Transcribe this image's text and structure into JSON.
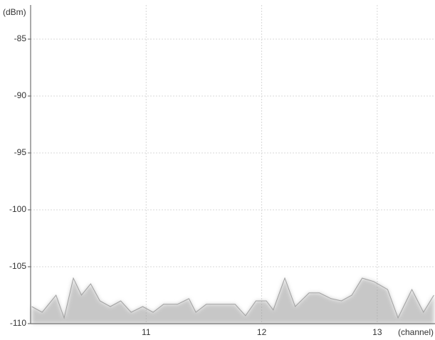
{
  "chart_data": {
    "type": "line",
    "y_label": "(dBm)",
    "x_label": "(channel)",
    "xlim": [
      10,
      13.5
    ],
    "xticks": [
      11,
      12,
      13
    ],
    "ylim": [
      -110,
      -82
    ],
    "yticks": [
      -110,
      -105,
      -100,
      -95,
      -90,
      -85
    ],
    "grid": true,
    "series": [
      {
        "color": "#a0a0a0",
        "x": [
          10.01,
          10.1,
          10.22,
          10.29,
          10.37,
          10.44,
          10.52,
          10.6,
          10.69,
          10.78,
          10.87,
          10.97,
          11.06,
          11.15,
          11.27,
          11.37,
          11.43,
          11.52,
          11.77,
          11.86,
          11.95,
          12.04,
          12.1,
          12.2,
          12.29,
          12.41,
          12.5,
          12.6,
          12.69,
          12.78,
          12.87,
          12.97,
          13.09,
          13.18,
          13.3,
          13.4,
          13.49
        ],
        "values": [
          -108.5,
          -109,
          -107.5,
          -109.5,
          -106,
          -107.5,
          -106.5,
          -108,
          -108.5,
          -108,
          -109,
          -108.5,
          -109,
          -108.3,
          -108.3,
          -107.8,
          -109,
          -108.3,
          -108.3,
          -109.3,
          -108,
          -108,
          -108.8,
          -106,
          -108.5,
          -107.3,
          -107.3,
          -107.8,
          -108,
          -107.5,
          -106,
          -106.3,
          -107,
          -109.5,
          -107,
          -109,
          -107.5
        ]
      }
    ]
  }
}
